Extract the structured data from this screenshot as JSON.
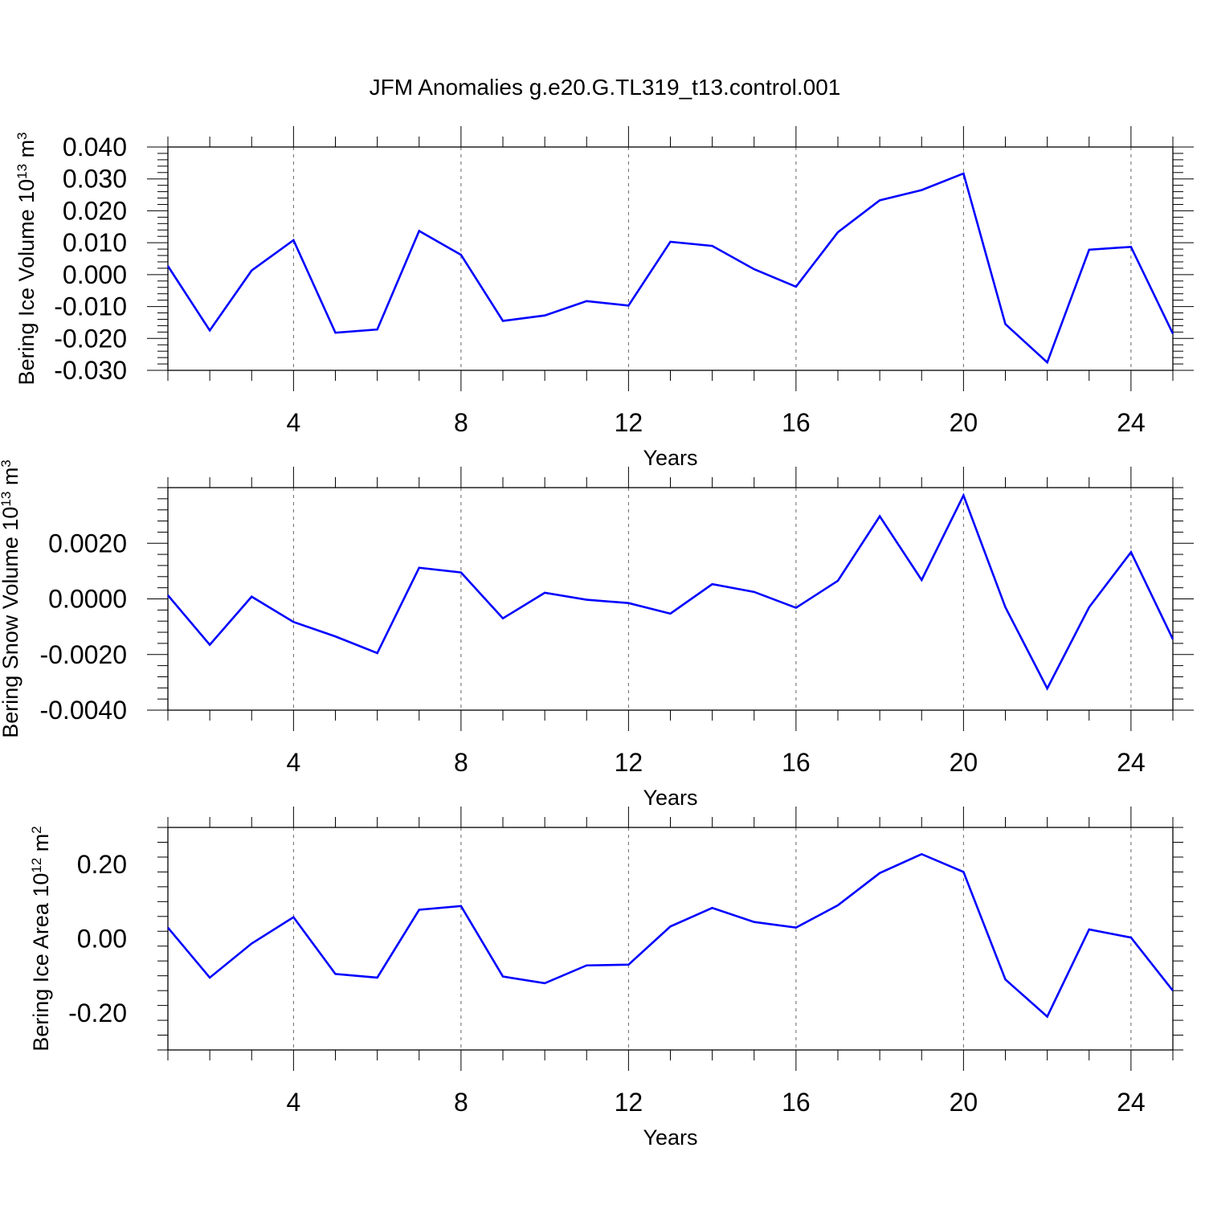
{
  "title": "JFM Anomalies g.e20.G.TL319_t13.control.001",
  "colors": {
    "line": "#0000ff",
    "axes": "#000000",
    "grid": "#666666"
  },
  "chart_data": [
    {
      "type": "line",
      "name": "ice-volume",
      "ylabel": "Bering Ice Volume",
      "ylabel_unit": {
        "base": "10",
        "exp": "13",
        "unit": "m",
        "unit_exp": "3"
      },
      "xlabel": "Years",
      "xlim": [
        1,
        25
      ],
      "ylim": [
        -0.03,
        0.04
      ],
      "x_ticks": [
        4,
        8,
        12,
        16,
        20,
        24
      ],
      "x_tick_labels": [
        "4",
        "8",
        "12",
        "16",
        "20",
        "24"
      ],
      "y_ticks": [
        -0.03,
        -0.02,
        -0.01,
        0.0,
        0.01,
        0.02,
        0.03,
        0.04
      ],
      "y_tick_labels": [
        "-0.030",
        "-0.020",
        "-0.010",
        "0.000",
        "0.010",
        "0.020",
        "0.030",
        "0.040"
      ],
      "x": [
        1,
        2,
        3,
        4,
        5,
        6,
        7,
        8,
        9,
        10,
        11,
        12,
        13,
        14,
        15,
        16,
        17,
        18,
        19,
        20,
        21,
        22,
        23,
        24,
        25
      ],
      "values": [
        0.0027,
        -0.0175,
        0.0013,
        0.0108,
        -0.0182,
        -0.0172,
        0.0137,
        0.0062,
        -0.0145,
        -0.0128,
        -0.0083,
        -0.0097,
        0.0103,
        0.009,
        0.0017,
        -0.0038,
        0.0133,
        0.0233,
        0.0265,
        0.0317,
        -0.0155,
        -0.0275,
        0.0078,
        0.0087,
        -0.0185
      ]
    },
    {
      "type": "line",
      "name": "snow-volume",
      "ylabel": "Bering Snow Volume",
      "ylabel_unit": {
        "base": "10",
        "exp": "13",
        "unit": "m",
        "unit_exp": "3"
      },
      "xlabel": "Years",
      "xlim": [
        1,
        25
      ],
      "ylim": [
        -0.004,
        0.004
      ],
      "x_ticks": [
        4,
        8,
        12,
        16,
        20,
        24
      ],
      "x_tick_labels": [
        "4",
        "8",
        "12",
        "16",
        "20",
        "24"
      ],
      "y_ticks": [
        -0.004,
        -0.002,
        0.0,
        0.002
      ],
      "y_tick_labels": [
        "-0.0040",
        "-0.0020",
        "0.0000",
        "0.0020"
      ],
      "x": [
        1,
        2,
        3,
        4,
        5,
        6,
        7,
        8,
        9,
        10,
        11,
        12,
        13,
        14,
        15,
        16,
        17,
        18,
        19,
        20,
        21,
        22,
        23,
        24,
        25
      ],
      "values": [
        0.00013,
        -0.00165,
        8e-05,
        -0.00083,
        -0.00135,
        -0.00195,
        0.00112,
        0.00095,
        -0.0007,
        0.00022,
        -3e-05,
        -0.00015,
        -0.00053,
        0.00053,
        0.00025,
        -0.00032,
        0.00065,
        0.00297,
        0.00068,
        0.00372,
        -0.0003,
        -0.00322,
        -0.0003,
        0.00168,
        -0.00145
      ]
    },
    {
      "type": "line",
      "name": "ice-area",
      "ylabel": "Bering Ice Area",
      "ylabel_unit": {
        "base": "10",
        "exp": "12",
        "unit": "m",
        "unit_exp": "2"
      },
      "xlabel": "Years",
      "xlim": [
        1,
        25
      ],
      "ylim": [
        -0.3,
        0.3
      ],
      "x_ticks": [
        4,
        8,
        12,
        16,
        20,
        24
      ],
      "x_tick_labels": [
        "4",
        "8",
        "12",
        "16",
        "20",
        "24"
      ],
      "y_ticks": [
        -0.2,
        0.0,
        0.2
      ],
      "y_tick_labels": [
        "-0.20",
        "0.00",
        "0.20"
      ],
      "x": [
        1,
        2,
        3,
        4,
        5,
        6,
        7,
        8,
        9,
        10,
        11,
        12,
        13,
        14,
        15,
        16,
        17,
        18,
        19,
        20,
        21,
        22,
        23,
        24,
        25
      ],
      "values": [
        0.03,
        -0.105,
        -0.013,
        0.058,
        -0.095,
        -0.105,
        0.078,
        0.088,
        -0.102,
        -0.12,
        -0.072,
        -0.07,
        0.033,
        0.083,
        0.045,
        0.03,
        0.09,
        0.177,
        0.228,
        0.18,
        -0.11,
        -0.21,
        0.025,
        0.003,
        -0.14
      ]
    }
  ]
}
